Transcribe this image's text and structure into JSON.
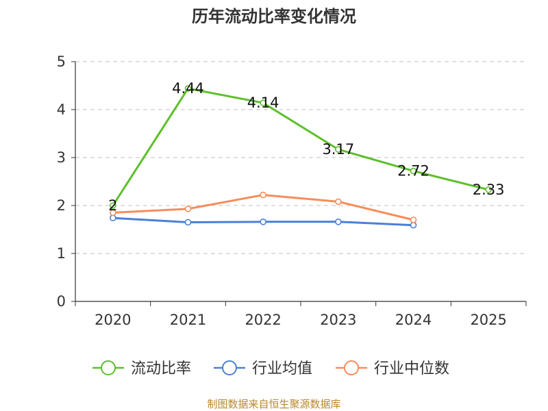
{
  "chart_data": {
    "type": "line",
    "title": "历年流动比率变化情况",
    "categories": [
      "2020",
      "2021",
      "2022",
      "2023",
      "2024",
      "2025"
    ],
    "ylim": [
      0,
      5
    ],
    "yticks": [
      "0",
      "1",
      "2",
      "3",
      "4",
      "5"
    ],
    "grid": true,
    "legend_position": "bottom",
    "series": [
      {
        "name": "流动比率",
        "color": "#5cbf2a",
        "values": [
          2,
          4.44,
          4.14,
          3.17,
          2.72,
          2.33
        ],
        "labels": [
          "2",
          "4.44",
          "4.14",
          "3.17",
          "2.72",
          "2.33"
        ]
      },
      {
        "name": "行业均值",
        "color": "#4a7fd6",
        "values": [
          1.74,
          1.65,
          1.66,
          1.66,
          1.59,
          null
        ]
      },
      {
        "name": "行业中位数",
        "color": "#f78c5a",
        "values": [
          1.85,
          1.93,
          2.22,
          2.08,
          1.7,
          null
        ]
      }
    ]
  },
  "source": "制图数据来自恒生聚源数据库"
}
